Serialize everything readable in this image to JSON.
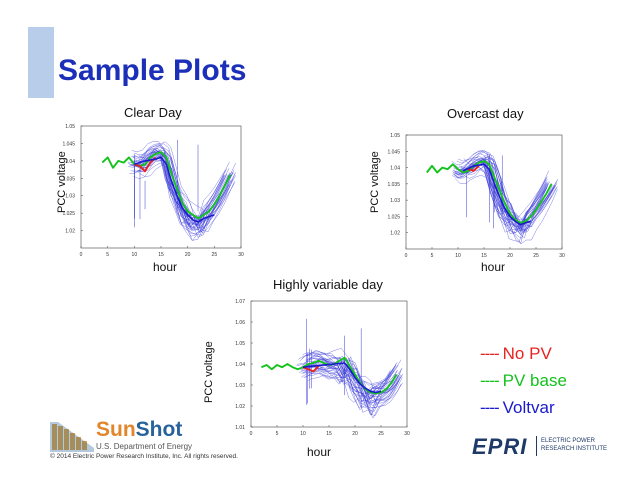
{
  "slide": {
    "title": "Sample Plots",
    "copyright": "© 2014 Electric Power Research Institute, Inc. All rights reserved."
  },
  "legend": [
    {
      "dash": "----",
      "label": "No PV",
      "color": "#e8231f"
    },
    {
      "dash": "----",
      "label": "PV base",
      "color": "#14c21c"
    },
    {
      "dash": "----",
      "label": "Voltvar",
      "color": "#1a1acc"
    }
  ],
  "logos": {
    "sunshot_a": "Sun",
    "sunshot_b": "Shot",
    "sunshot_sub": "U.S. Department of Energy",
    "epri_name": "EPRI",
    "epri_tag_1": "ELECTRIC POWER",
    "epri_tag_2": "RESEARCH INSTITUTE"
  },
  "colors": {
    "title": "#1b2fb8",
    "no_pv": "#e8231f",
    "pv_base": "#14c21c",
    "voltvar": "#1a1acc"
  },
  "chart_data": [
    {
      "type": "line",
      "title": "Clear Day",
      "xlabel": "hour",
      "ylabel": "PCC voltage",
      "xlim": [
        0,
        30
      ],
      "ylim": [
        1.015,
        1.05
      ],
      "xticks": [
        "0",
        "5",
        "10",
        "15",
        "20",
        "25",
        "30"
      ],
      "yticks": [
        "1.02",
        "1.025",
        "1.03",
        "1.035",
        "1.04",
        "1.045",
        "1.05"
      ],
      "series": [
        {
          "name": "PV base",
          "color": "#14c21c",
          "x": [
            4,
            5,
            6,
            7,
            8,
            9,
            10,
            11,
            12,
            13,
            14,
            15,
            16,
            17,
            18,
            19,
            20,
            21,
            22,
            23,
            24,
            25,
            26,
            27,
            28
          ],
          "y": [
            1.0395,
            1.041,
            1.038,
            1.04,
            1.0395,
            1.041,
            1.039,
            1.0385,
            1.039,
            1.041,
            1.042,
            1.0425,
            1.041,
            1.036,
            1.032,
            1.028,
            1.0255,
            1.0245,
            1.0235,
            1.0245,
            1.0255,
            1.0275,
            1.03,
            1.033,
            1.036
          ]
        },
        {
          "name": "No PV",
          "color": "#e8231f",
          "x": [
            10,
            11,
            12,
            13,
            14
          ],
          "y": [
            1.039,
            1.0385,
            1.037,
            1.0395,
            1.041
          ]
        },
        {
          "name": "Voltvar",
          "color": "#1a1acc",
          "x": [
            10,
            12,
            14,
            15,
            16,
            17,
            18,
            19,
            20,
            21,
            22,
            23,
            24,
            25
          ],
          "y": [
            1.039,
            1.04,
            1.0405,
            1.041,
            1.039,
            1.034,
            1.03,
            1.0265,
            1.0245,
            1.023,
            1.0225,
            1.0235,
            1.024,
            1.0245
          ]
        }
      ]
    },
    {
      "type": "line",
      "title": "Overcast day",
      "xlabel": "hour",
      "ylabel": "PCC voltage",
      "xlim": [
        0,
        30
      ],
      "ylim": [
        1.015,
        1.05
      ],
      "xticks": [
        "0",
        "5",
        "10",
        "15",
        "20",
        "25",
        "30"
      ],
      "yticks": [
        "1.02",
        "1.025",
        "1.03",
        "1.035",
        "1.04",
        "1.045",
        "1.05"
      ],
      "series": [
        {
          "name": "PV base",
          "color": "#14c21c",
          "x": [
            4,
            5,
            6,
            7,
            8,
            9,
            10,
            11,
            12,
            13,
            14,
            15,
            16,
            17,
            18,
            19,
            20,
            21,
            22,
            23,
            24,
            25,
            26,
            27,
            28
          ],
          "y": [
            1.0385,
            1.0405,
            1.0385,
            1.04,
            1.0395,
            1.041,
            1.0395,
            1.0385,
            1.039,
            1.0405,
            1.0415,
            1.042,
            1.041,
            1.037,
            1.033,
            1.029,
            1.026,
            1.024,
            1.023,
            1.0235,
            1.025,
            1.027,
            1.0295,
            1.032,
            1.035
          ]
        },
        {
          "name": "No PV",
          "color": "#e8231f",
          "x": [
            12,
            13,
            14
          ],
          "y": [
            1.0395,
            1.039,
            1.0405
          ]
        },
        {
          "name": "Voltvar",
          "color": "#1a1acc",
          "x": [
            11,
            13,
            15,
            16,
            17,
            18,
            19,
            20,
            21,
            22,
            23,
            24
          ],
          "y": [
            1.039,
            1.0405,
            1.041,
            1.0395,
            1.035,
            1.031,
            1.0275,
            1.025,
            1.0235,
            1.0225,
            1.023,
            1.0235
          ]
        }
      ]
    },
    {
      "type": "line",
      "title": "Highly variable day",
      "xlabel": "hour",
      "ylabel": "PCC voltage",
      "xlim": [
        0,
        30
      ],
      "ylim": [
        1.01,
        1.07
      ],
      "xticks": [
        "0",
        "5",
        "10",
        "15",
        "20",
        "25",
        "30"
      ],
      "yticks": [
        "1.01",
        "1.02",
        "1.03",
        "1.04",
        "1.05",
        "1.06",
        "1.07"
      ],
      "series": [
        {
          "name": "PV base",
          "color": "#14c21c",
          "x": [
            2,
            3,
            4,
            5,
            6,
            7,
            8,
            9,
            10,
            11,
            12,
            13,
            14,
            15,
            16,
            17,
            18,
            19,
            20,
            21,
            22,
            23,
            24,
            25,
            26,
            27,
            28
          ],
          "y": [
            1.0385,
            1.0395,
            1.0375,
            1.0395,
            1.0385,
            1.04,
            1.0385,
            1.0375,
            1.0385,
            1.04,
            1.0405,
            1.0415,
            1.0405,
            1.0395,
            1.04,
            1.0415,
            1.043,
            1.039,
            1.035,
            1.031,
            1.028,
            1.0265,
            1.026,
            1.0265,
            1.028,
            1.031,
            1.035
          ]
        },
        {
          "name": "No PV",
          "color": "#e8231f",
          "x": [
            10,
            11,
            12,
            13
          ],
          "y": [
            1.0385,
            1.0375,
            1.0365,
            1.039
          ]
        },
        {
          "name": "Voltvar",
          "color": "#1a1acc",
          "x": [
            10,
            12,
            14,
            16,
            18,
            19,
            20,
            21,
            22,
            23,
            24,
            25
          ],
          "y": [
            1.0385,
            1.039,
            1.0395,
            1.04,
            1.0405,
            1.0375,
            1.0335,
            1.0305,
            1.0285,
            1.027,
            1.0265,
            1.027
          ]
        }
      ]
    }
  ]
}
